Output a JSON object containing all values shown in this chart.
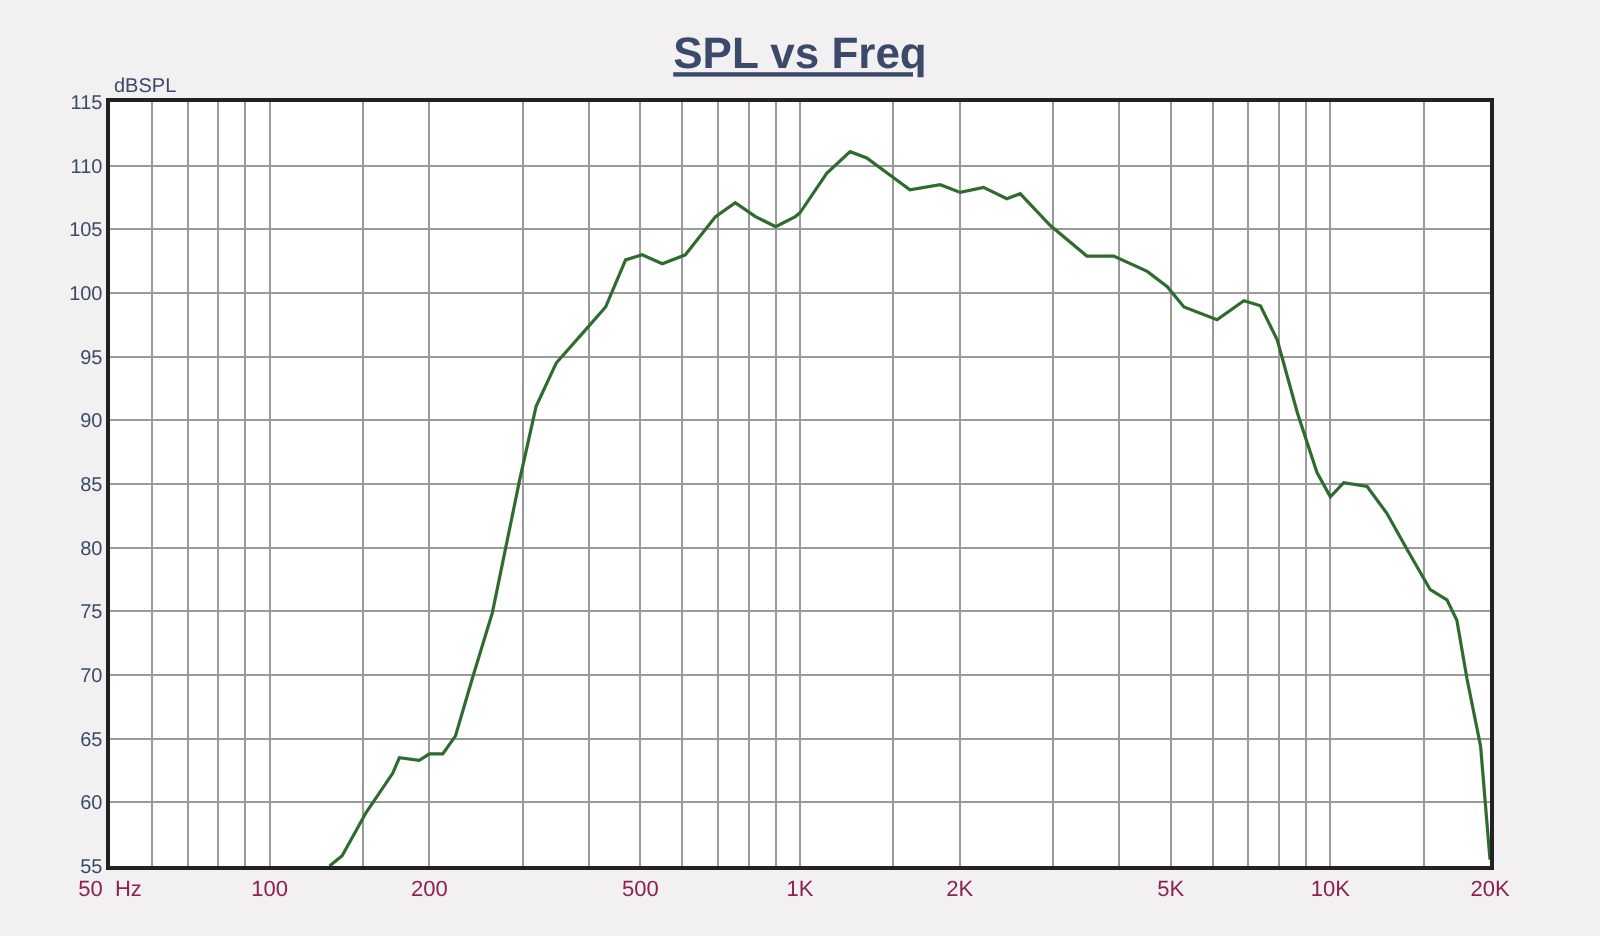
{
  "chart_data": {
    "type": "line",
    "title": "SPL vs Freq",
    "ylabel": "dBSPL",
    "log": "x",
    "grid": true,
    "x": [
      129.7,
      137,
      152,
      170.7,
      175.6,
      191.5,
      200,
      212,
      224,
      241,
      263,
      279,
      296,
      318,
      347,
      394,
      430,
      469,
      504,
      550,
      608,
      693,
      755,
      824,
      900,
      980,
      1000,
      1123,
      1243,
      1336,
      1612,
      1838,
      2005,
      2218,
      2455,
      2601,
      2965,
      3474,
      3904,
      4515,
      4926,
      5296,
      6114,
      6870,
      7383,
      7943,
      8665,
      9437,
      10000,
      10600,
      11730,
      12780,
      13940,
      15430,
      16590,
      17320,
      18100,
      19200,
      20000
    ],
    "series": [
      {
        "color": "#2e6b2e",
        "values": [
          55,
          55.8,
          59.2,
          62.3,
          63.5,
          63.3,
          63.8,
          63.8,
          65.2,
          69.7,
          74.9,
          80.1,
          85.3,
          91.1,
          94.5,
          97.1,
          98.9,
          102.6,
          103.0,
          102.3,
          103.0,
          106.0,
          107.1,
          106.0,
          105.2,
          106.0,
          106.3,
          109.4,
          111.1,
          110.6,
          108.1,
          108.5,
          107.9,
          108.3,
          107.4,
          107.8,
          105.3,
          102.9,
          102.9,
          101.7,
          100.5,
          98.9,
          97.9,
          99.4,
          99.0,
          96.3,
          90.6,
          85.9,
          84.0,
          85.1,
          84.8,
          82.7,
          79.9,
          76.7,
          75.9,
          74.3,
          69.7,
          64.4,
          55.5
        ]
      }
    ],
    "xlim": [
      50,
      20000
    ],
    "ylim": [
      55,
      115
    ],
    "xticks": [
      {
        "value": 50,
        "label": "50  Hz"
      },
      {
        "value": 60,
        "label": null
      },
      {
        "value": 70,
        "label": null
      },
      {
        "value": 80,
        "label": null
      },
      {
        "value": 90,
        "label": null
      },
      100,
      {
        "value": 150,
        "label": null
      },
      200,
      {
        "value": 300,
        "label": null
      },
      {
        "value": 400,
        "label": null
      },
      500,
      {
        "value": 600,
        "label": null
      },
      {
        "value": 700,
        "label": null
      },
      {
        "value": 800,
        "label": null
      },
      {
        "value": 900,
        "label": null
      },
      {
        "value": 1000,
        "label": "1K"
      },
      {
        "value": 1500,
        "label": null
      },
      {
        "value": 2000,
        "label": "2K"
      },
      {
        "value": 3000,
        "label": null
      },
      {
        "value": 4000,
        "label": null
      },
      {
        "value": 5000,
        "label": "5K"
      },
      {
        "value": 6000,
        "label": null
      },
      {
        "value": 7000,
        "label": null
      },
      {
        "value": 8000,
        "label": null
      },
      {
        "value": 9000,
        "label": null
      },
      {
        "value": 10000,
        "label": "10K"
      },
      {
        "value": 15000,
        "label": null
      },
      {
        "value": 20000,
        "label": "20K"
      }
    ],
    "yticks": [
      55,
      60,
      65,
      70,
      75,
      80,
      85,
      90,
      95,
      100,
      105,
      110,
      115
    ]
  }
}
